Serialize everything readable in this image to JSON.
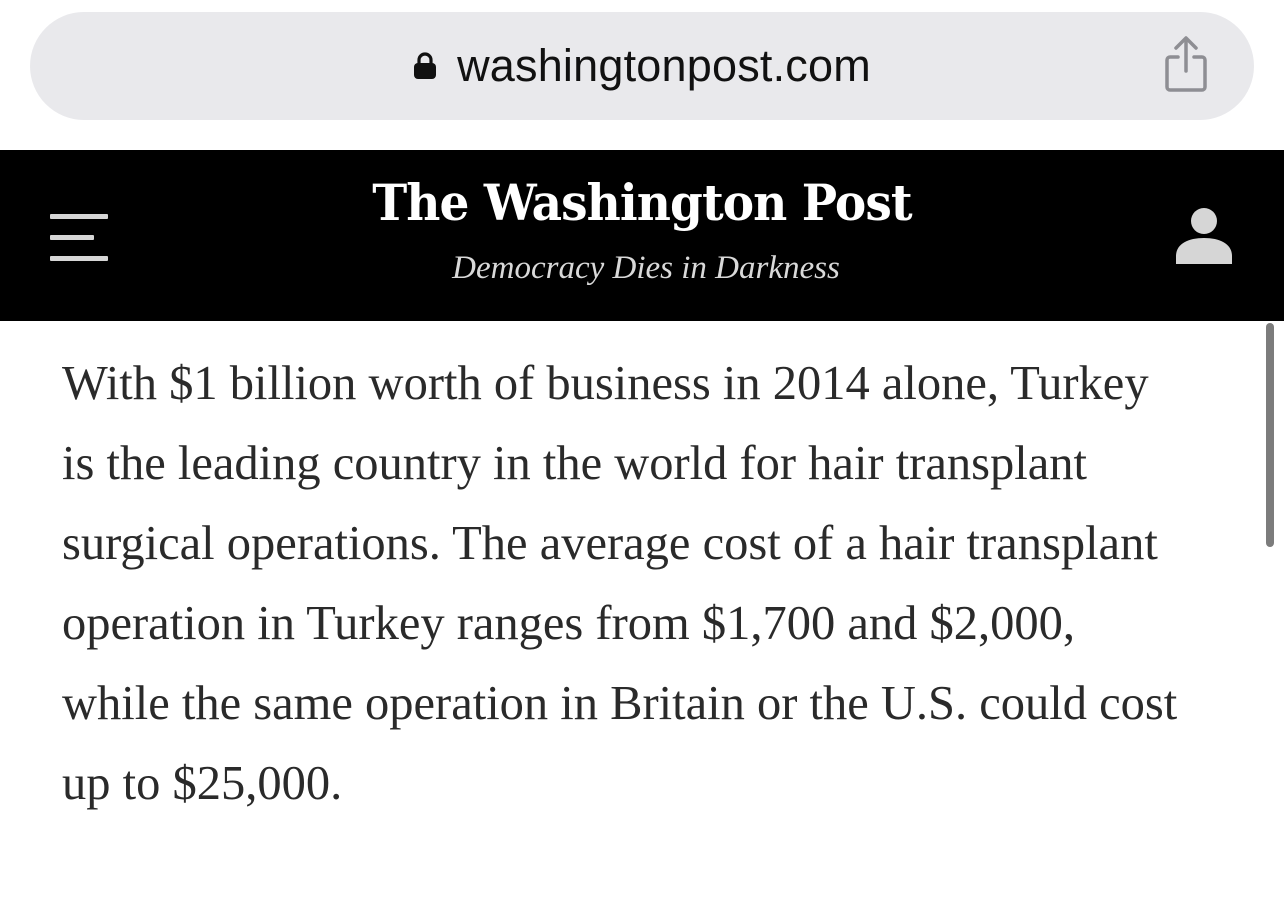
{
  "browser": {
    "url": "washingtonpost.com",
    "lock_icon": "lock-icon",
    "share_icon": "share-icon"
  },
  "header": {
    "masthead": "The Washington Post",
    "tagline": "Democracy Dies in Darkness",
    "menu_icon": "hamburger-menu-icon",
    "account_icon": "user-account-icon",
    "background_color": "#000000"
  },
  "article": {
    "paragraph": "With $1 billion worth of business in 2014 alone, Turkey is the leading country in the world for hair transplant surgical operations. The average cost of a hair transplant operation in Turkey ranges from $1,700 and $2,000, while the same operation in Britain or the U.S. could cost up to $25,000."
  }
}
